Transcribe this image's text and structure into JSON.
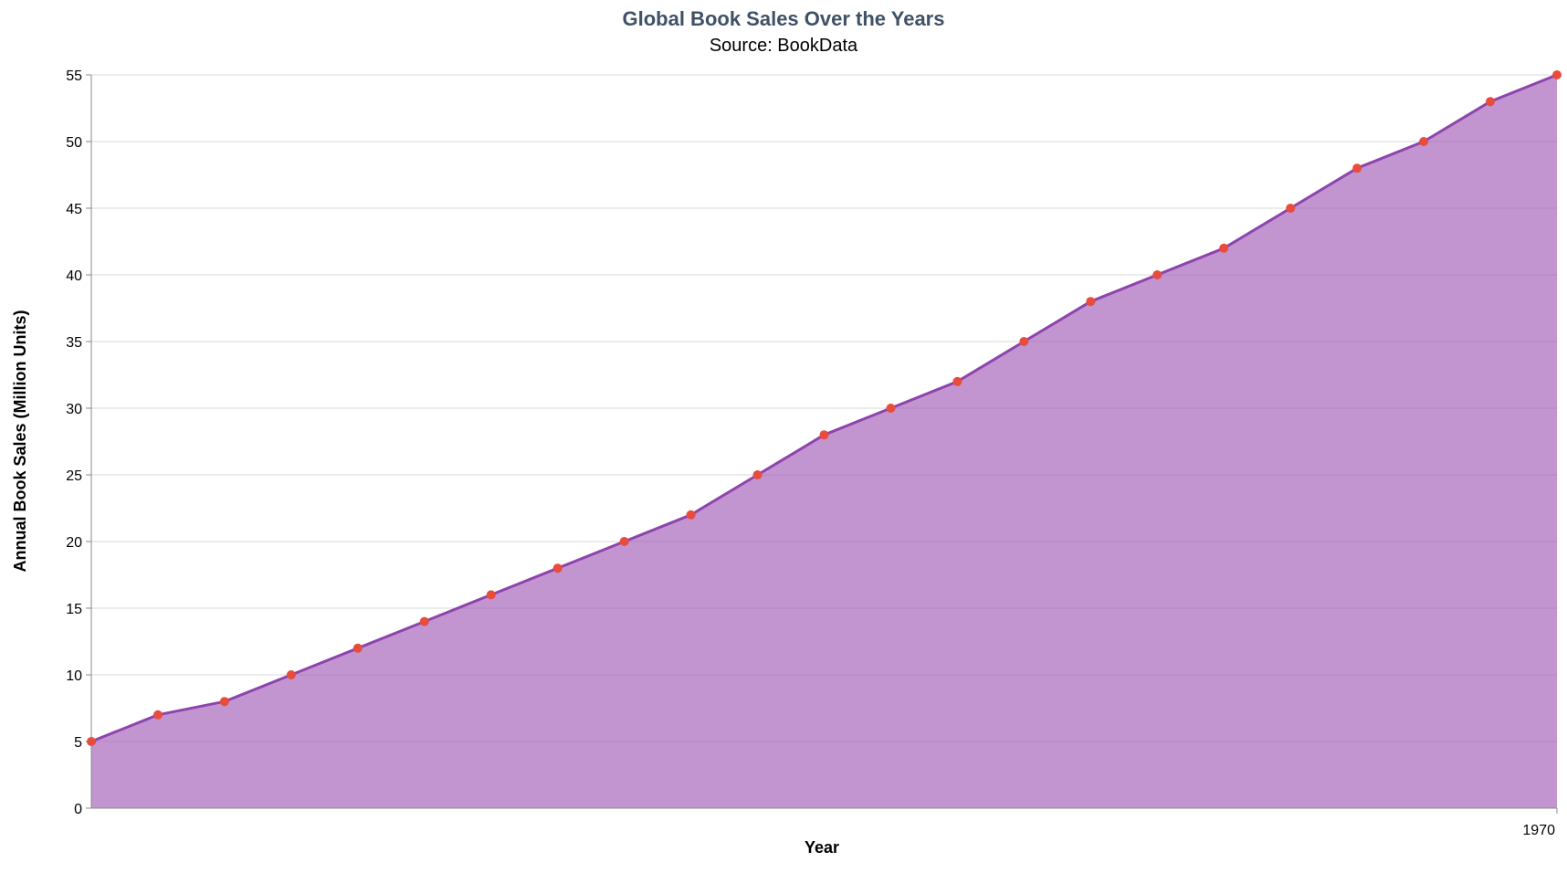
{
  "chart_data": {
    "type": "area",
    "title": "Global Book Sales Over the Years",
    "subtitle": "Source: BookData",
    "xlabel": "Year",
    "ylabel": "Annual Book Sales (Million Units)",
    "x_tick_labels": [
      "1970"
    ],
    "y_ticks": [
      0,
      5,
      10,
      15,
      20,
      25,
      30,
      35,
      40,
      45,
      50,
      55
    ],
    "ylim": [
      0,
      55
    ],
    "grid": true,
    "series": [
      {
        "values": [
          5,
          7,
          8,
          10,
          12,
          14,
          16,
          18,
          20,
          22,
          25,
          28,
          30,
          32,
          35,
          38,
          40,
          42,
          45,
          48,
          50,
          53,
          55
        ]
      }
    ],
    "colors": {
      "area_fill": "#9b4fb0",
      "line": "#8e44ad",
      "point": "#e74c3c",
      "title": "#3f5166"
    }
  }
}
